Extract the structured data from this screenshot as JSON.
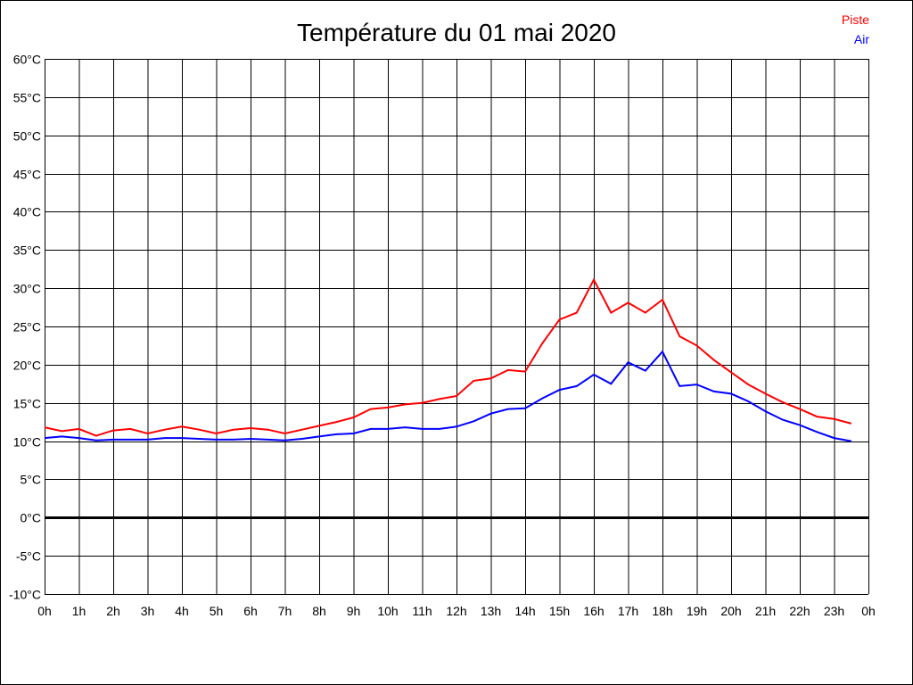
{
  "chart_data": {
    "type": "line",
    "title": "Température du 01 mai 2020",
    "xlabel": "",
    "ylabel": "",
    "x_ticks": [
      "0h",
      "1h",
      "2h",
      "3h",
      "4h",
      "5h",
      "6h",
      "7h",
      "8h",
      "9h",
      "10h",
      "11h",
      "12h",
      "13h",
      "14h",
      "15h",
      "16h",
      "17h",
      "18h",
      "19h",
      "20h",
      "21h",
      "22h",
      "23h",
      "0h"
    ],
    "y_ticks": [
      "-10°C",
      "-5°C",
      "0°C",
      "5°C",
      "10°C",
      "15°C",
      "20°C",
      "25°C",
      "30°C",
      "35°C",
      "40°C",
      "45°C",
      "50°C",
      "55°C",
      "60°C"
    ],
    "xlim": [
      0,
      24
    ],
    "ylim": [
      -10,
      60
    ],
    "grid": true,
    "legend_position": "top-right",
    "x": [
      0,
      0.5,
      1,
      1.5,
      2,
      2.5,
      3,
      3.5,
      4,
      4.5,
      5,
      5.5,
      6,
      6.5,
      7,
      7.5,
      8,
      8.5,
      9,
      9.5,
      10,
      10.5,
      11,
      11.5,
      12,
      12.5,
      13,
      13.5,
      14,
      14.5,
      15,
      15.5,
      16,
      16.5,
      17,
      17.5,
      18,
      18.5,
      19,
      19.5,
      20,
      20.5,
      21,
      21.5,
      22,
      22.5,
      23,
      23.5
    ],
    "series": [
      {
        "name": "Piste",
        "color": "#ff0000",
        "values": [
          11.8,
          11.3,
          11.6,
          10.7,
          11.4,
          11.6,
          11.0,
          11.5,
          11.9,
          11.5,
          11.0,
          11.5,
          11.7,
          11.5,
          11.0,
          11.5,
          12.0,
          12.5,
          13.1,
          14.2,
          14.4,
          14.8,
          15.0,
          15.5,
          15.9,
          17.9,
          18.2,
          19.3,
          19.1,
          22.8,
          25.9,
          26.8,
          31.1,
          26.8,
          28.1,
          26.8,
          28.5,
          23.7,
          22.5,
          20.6,
          19.0,
          17.4,
          16.2,
          15.1,
          14.2,
          13.2,
          12.9,
          12.3
        ]
      },
      {
        "name": "Air",
        "color": "#0000ff",
        "values": [
          10.4,
          10.6,
          10.4,
          10.1,
          10.2,
          10.2,
          10.2,
          10.4,
          10.4,
          10.3,
          10.2,
          10.2,
          10.3,
          10.2,
          10.1,
          10.3,
          10.6,
          10.9,
          11.0,
          11.6,
          11.6,
          11.8,
          11.6,
          11.6,
          11.9,
          12.6,
          13.6,
          14.2,
          14.3,
          15.6,
          16.7,
          17.2,
          18.7,
          17.5,
          20.3,
          19.2,
          21.7,
          17.2,
          17.4,
          16.5,
          16.2,
          15.2,
          13.9,
          12.8,
          12.1,
          11.2,
          10.4,
          10.0
        ]
      }
    ]
  }
}
